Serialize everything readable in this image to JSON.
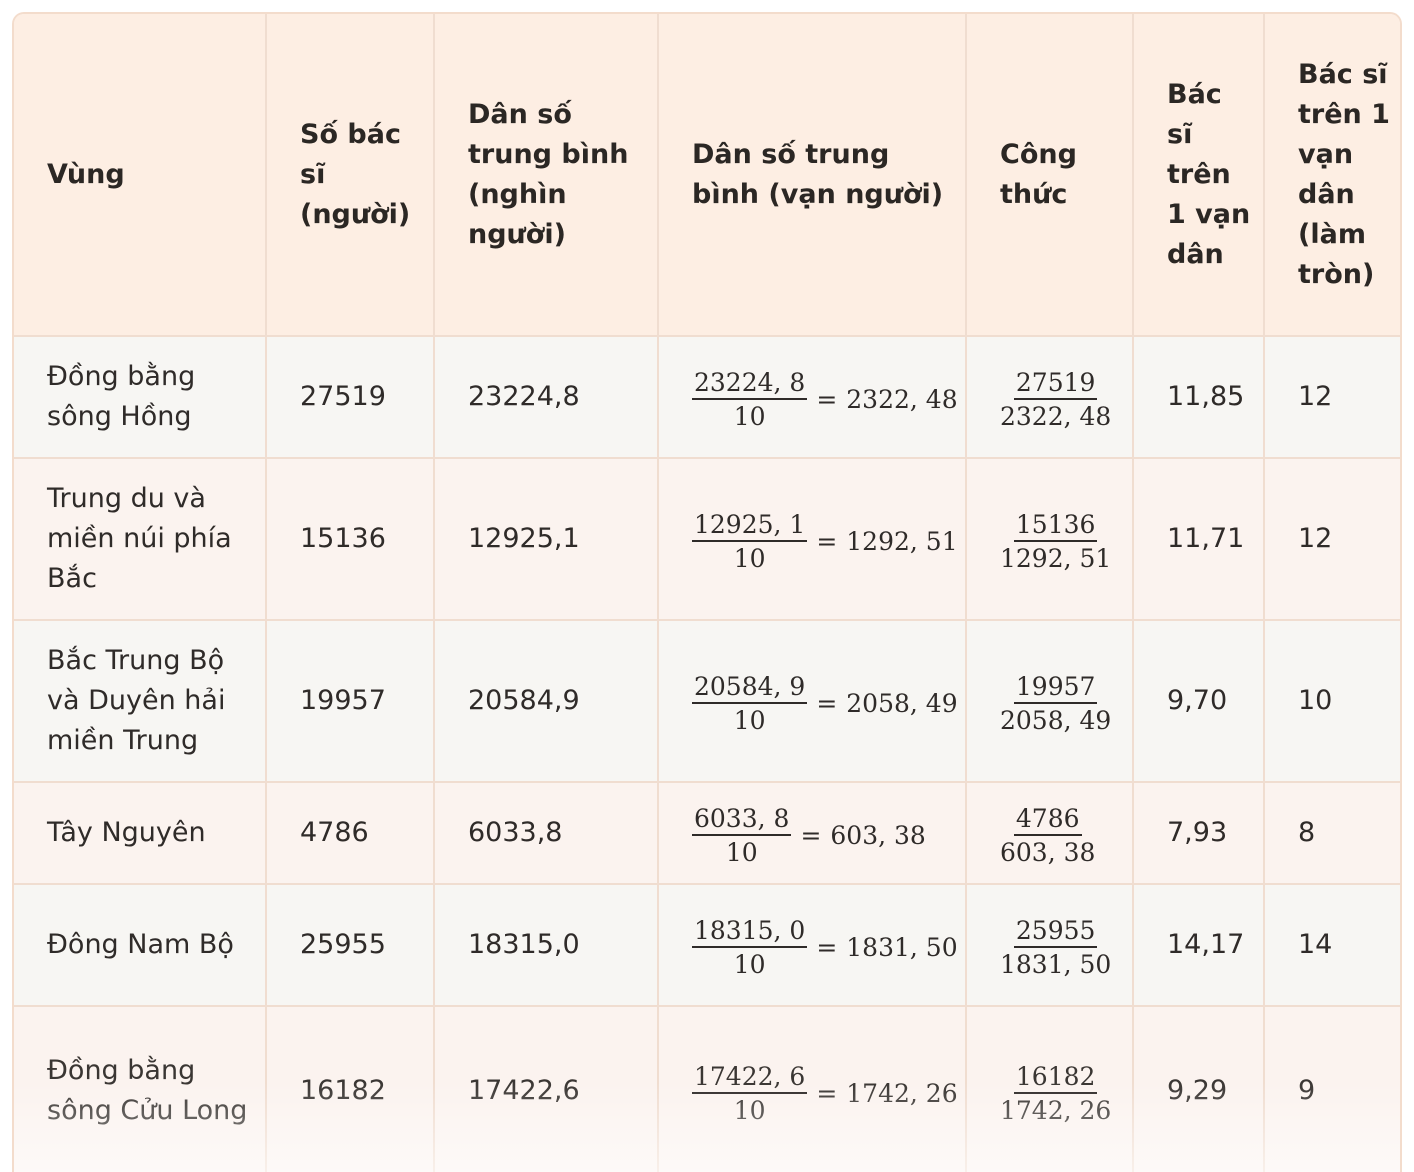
{
  "headers": {
    "region": "Vùng",
    "doctors": "Số bác sĩ (người)",
    "population_thousand": "Dân số trung bình (nghìn người)",
    "population_tenthousand": "Dân số trung bình (vạn người)",
    "formula": "Công thức",
    "doctors_per_10k": "Bác sĩ trên 1 vạn dân",
    "doctors_per_10k_rounded": "Bác sĩ trên 1 vạn dân (làm tròn)"
  },
  "rows": [
    {
      "region": "Đồng bằng sông Hồng",
      "doctors": "27519",
      "population": "23224,8",
      "div_num": "23224, 8",
      "div_den": "10",
      "div_result": "2322, 48",
      "formula_num": "27519",
      "formula_den": "2322, 48",
      "ratio": "11,85",
      "rounded": "12"
    },
    {
      "region": "Trung du và miền núi phía Bắc",
      "doctors": "15136",
      "population": "12925,1",
      "div_num": "12925, 1",
      "div_den": "10",
      "div_result": "1292, 51",
      "formula_num": "15136",
      "formula_den": "1292, 51",
      "ratio": "11,71",
      "rounded": "12"
    },
    {
      "region": "Bắc Trung Bộ và Duyên hải miền Trung",
      "doctors": "19957",
      "population": "20584,9",
      "div_num": "20584, 9",
      "div_den": "10",
      "div_result": "2058, 49",
      "formula_num": "19957",
      "formula_den": "2058, 49",
      "ratio": "9,70",
      "rounded": "10"
    },
    {
      "region": "Tây Nguyên",
      "doctors": "4786",
      "population": "6033,8",
      "div_num": "6033, 8",
      "div_den": "10",
      "div_result": "603, 38",
      "formula_num": "4786",
      "formula_den": "603, 38",
      "ratio": "7,93",
      "rounded": "8"
    },
    {
      "region": "Đông Nam Bộ",
      "doctors": "25955",
      "population": "18315,0",
      "div_num": "18315, 0",
      "div_den": "10",
      "div_result": "1831, 50",
      "formula_num": "25955",
      "formula_den": "1831, 50",
      "ratio": "14,17",
      "rounded": "14"
    },
    {
      "region": "Đồng bằng sông Cửu Long",
      "doctors": "16182",
      "population": "17422,6",
      "div_num": "17422, 6",
      "div_den": "10",
      "div_result": "1742, 26",
      "formula_num": "16182",
      "formula_den": "1742, 26",
      "ratio": "9,29",
      "rounded": "9"
    }
  ]
}
